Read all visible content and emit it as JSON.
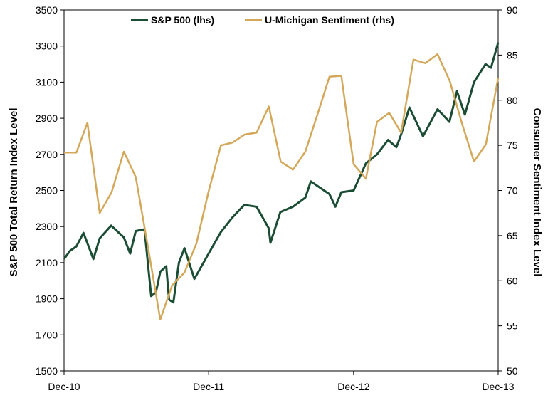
{
  "chart_data": {
    "type": "line",
    "title": "",
    "x": [
      "Dec-10",
      "Dec-11",
      "Dec-12",
      "Dec-13"
    ],
    "xlim": [
      "Dec-10",
      "Dec-13"
    ],
    "ylabel_left": "S&P 500 Total Return Index Level",
    "ylabel_right": "Consumer Sentiment Index Level",
    "ylim_left": [
      1500,
      3500
    ],
    "ylim_right": [
      50,
      90
    ],
    "yticks_left": [
      "1500",
      "1700",
      "1900",
      "2100",
      "2300",
      "2500",
      "2700",
      "2900",
      "3100",
      "3300",
      "3500"
    ],
    "yticks_right": [
      "50",
      "55",
      "60",
      "65",
      "70",
      "75",
      "80",
      "85",
      "90"
    ],
    "xticks": [
      "Dec-10",
      "Dec-11",
      "Dec-12",
      "Dec-13"
    ],
    "grid": false,
    "legend_position": "top-center",
    "series": [
      {
        "name": "S&P 500 (lhs)",
        "axis": "left",
        "color": "#1a4d34",
        "points": [
          [
            "2010-12-31",
            2120
          ],
          [
            "2011-01-15",
            2165
          ],
          [
            "2011-01-31",
            2190
          ],
          [
            "2011-02-18",
            2265
          ],
          [
            "2011-03-15",
            2120
          ],
          [
            "2011-03-31",
            2235
          ],
          [
            "2011-04-29",
            2305
          ],
          [
            "2011-05-31",
            2240
          ],
          [
            "2011-06-16",
            2150
          ],
          [
            "2011-06-30",
            2275
          ],
          [
            "2011-07-22",
            2285
          ],
          [
            "2011-08-08",
            1915
          ],
          [
            "2011-08-20",
            1935
          ],
          [
            "2011-08-31",
            2050
          ],
          [
            "2011-09-15",
            2080
          ],
          [
            "2011-09-22",
            1895
          ],
          [
            "2011-10-03",
            1880
          ],
          [
            "2011-10-17",
            2100
          ],
          [
            "2011-10-31",
            2180
          ],
          [
            "2011-11-25",
            2010
          ],
          [
            "2011-12-31",
            2150
          ],
          [
            "2012-01-31",
            2270
          ],
          [
            "2012-02-29",
            2350
          ],
          [
            "2012-03-30",
            2420
          ],
          [
            "2012-04-30",
            2410
          ],
          [
            "2012-05-31",
            2290
          ],
          [
            "2012-06-04",
            2210
          ],
          [
            "2012-06-29",
            2380
          ],
          [
            "2012-07-31",
            2410
          ],
          [
            "2012-08-31",
            2460
          ],
          [
            "2012-09-14",
            2550
          ],
          [
            "2012-10-31",
            2480
          ],
          [
            "2012-11-15",
            2410
          ],
          [
            "2012-11-30",
            2490
          ],
          [
            "2012-12-31",
            2500
          ],
          [
            "2013-01-31",
            2650
          ],
          [
            "2013-02-28",
            2700
          ],
          [
            "2013-03-28",
            2780
          ],
          [
            "2013-04-18",
            2740
          ],
          [
            "2013-04-30",
            2810
          ],
          [
            "2013-05-21",
            2960
          ],
          [
            "2013-06-24",
            2800
          ],
          [
            "2013-07-31",
            2950
          ],
          [
            "2013-08-30",
            2880
          ],
          [
            "2013-09-18",
            3050
          ],
          [
            "2013-10-08",
            2920
          ],
          [
            "2013-10-31",
            3100
          ],
          [
            "2013-11-29",
            3200
          ],
          [
            "2013-12-13",
            3180
          ],
          [
            "2013-12-31",
            3320
          ]
        ]
      },
      {
        "name": "U-Michigan Sentiment (rhs)",
        "axis": "right",
        "color": "#d4a85a",
        "points": [
          [
            "2010-12-31",
            74.2
          ],
          [
            "2011-01-31",
            74.2
          ],
          [
            "2011-02-28",
            77.5
          ],
          [
            "2011-03-31",
            67.5
          ],
          [
            "2011-04-30",
            69.8
          ],
          [
            "2011-05-31",
            74.3
          ],
          [
            "2011-06-30",
            71.5
          ],
          [
            "2011-07-31",
            63.7
          ],
          [
            "2011-08-31",
            55.7
          ],
          [
            "2011-09-30",
            59.5
          ],
          [
            "2011-10-31",
            60.9
          ],
          [
            "2011-11-30",
            64.1
          ],
          [
            "2011-12-31",
            69.9
          ],
          [
            "2012-01-31",
            75.0
          ],
          [
            "2012-02-29",
            75.3
          ],
          [
            "2012-03-31",
            76.2
          ],
          [
            "2012-04-30",
            76.4
          ],
          [
            "2012-05-31",
            79.3
          ],
          [
            "2012-06-30",
            73.2
          ],
          [
            "2012-07-31",
            72.3
          ],
          [
            "2012-08-31",
            74.3
          ],
          [
            "2012-09-30",
            78.3
          ],
          [
            "2012-10-31",
            82.6
          ],
          [
            "2012-11-30",
            82.7
          ],
          [
            "2012-12-31",
            72.9
          ],
          [
            "2013-01-31",
            71.3
          ],
          [
            "2013-02-28",
            77.6
          ],
          [
            "2013-03-31",
            78.6
          ],
          [
            "2013-04-30",
            76.4
          ],
          [
            "2013-05-31",
            84.5
          ],
          [
            "2013-06-30",
            84.1
          ],
          [
            "2013-07-31",
            85.1
          ],
          [
            "2013-08-31",
            82.1
          ],
          [
            "2013-09-30",
            77.5
          ],
          [
            "2013-10-31",
            73.2
          ],
          [
            "2013-11-30",
            75.1
          ],
          [
            "2013-12-31",
            82.5
          ]
        ]
      }
    ]
  }
}
